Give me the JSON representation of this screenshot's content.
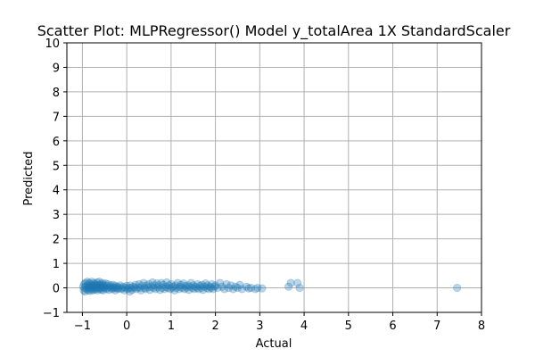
{
  "chart_data": {
    "type": "scatter",
    "title": "Scatter Plot: MLPRegressor() Model y_totalArea 1X StandardScaler",
    "xlabel": "Actual",
    "ylabel": "Predicted",
    "xlim": [
      -1.35,
      8.0
    ],
    "ylim": [
      -1,
      10
    ],
    "xticks": [
      -1,
      0,
      1,
      2,
      3,
      4,
      5,
      6,
      7,
      8
    ],
    "xtick_labels": [
      "−1",
      "0",
      "1",
      "2",
      "3",
      "4",
      "5",
      "6",
      "7",
      "8"
    ],
    "yticks": [
      -1,
      0,
      1,
      2,
      3,
      4,
      5,
      6,
      7,
      8,
      9,
      10
    ],
    "ytick_labels": [
      "−1",
      "0",
      "1",
      "2",
      "3",
      "4",
      "5",
      "6",
      "7",
      "8",
      "9",
      "10"
    ],
    "grid": true,
    "marker_color": "#1f77b4",
    "marker_alpha": 0.3,
    "series": [
      {
        "points": [
          [
            -0.98,
            0.05
          ],
          [
            -0.97,
            -0.1
          ],
          [
            -0.96,
            0.15
          ],
          [
            -0.95,
            0.0
          ],
          [
            -0.94,
            -0.15
          ],
          [
            -0.93,
            0.2
          ],
          [
            -0.92,
            0.05
          ],
          [
            -0.9,
            -0.05
          ],
          [
            -0.89,
            0.25
          ],
          [
            -0.88,
            0.1
          ],
          [
            -0.87,
            -0.1
          ],
          [
            -0.86,
            0.0
          ],
          [
            -0.85,
            0.2
          ],
          [
            -0.84,
            0.05
          ],
          [
            -0.83,
            -0.12
          ],
          [
            -0.82,
            0.15
          ],
          [
            -0.81,
            0.02
          ],
          [
            -0.8,
            -0.05
          ],
          [
            -0.79,
            0.25
          ],
          [
            -0.78,
            0.08
          ],
          [
            -0.77,
            -0.1
          ],
          [
            -0.76,
            0.12
          ],
          [
            -0.75,
            0.0
          ],
          [
            -0.74,
            0.2
          ],
          [
            -0.73,
            -0.08
          ],
          [
            -0.72,
            0.05
          ],
          [
            -0.71,
            0.15
          ],
          [
            -0.7,
            -0.05
          ],
          [
            -0.69,
            0.1
          ],
          [
            -0.68,
            0.0
          ],
          [
            -0.67,
            0.22
          ],
          [
            -0.66,
            -0.1
          ],
          [
            -0.65,
            0.05
          ],
          [
            -0.64,
            0.12
          ],
          [
            -0.63,
            0.0
          ],
          [
            -0.62,
            0.25
          ],
          [
            -0.61,
            -0.05
          ],
          [
            -0.6,
            0.08
          ],
          [
            -0.59,
            0.15
          ],
          [
            -0.58,
            0.0
          ],
          [
            -0.57,
            -0.08
          ],
          [
            -0.56,
            0.1
          ],
          [
            -0.55,
            0.2
          ],
          [
            -0.54,
            0.02
          ],
          [
            -0.53,
            -0.1
          ],
          [
            -0.52,
            0.12
          ],
          [
            -0.51,
            0.05
          ],
          [
            -0.5,
            0.0
          ],
          [
            -0.48,
            0.18
          ],
          [
            -0.46,
            -0.05
          ],
          [
            -0.45,
            0.08
          ],
          [
            -0.43,
            0.0
          ],
          [
            -0.42,
            0.15
          ],
          [
            -0.4,
            -0.08
          ],
          [
            -0.38,
            0.05
          ],
          [
            -0.36,
            0.1
          ],
          [
            -0.35,
            0.0
          ],
          [
            -0.33,
            -0.05
          ],
          [
            -0.31,
            0.12
          ],
          [
            -0.3,
            0.02
          ],
          [
            -0.28,
            0.0
          ],
          [
            -0.26,
            -0.1
          ],
          [
            -0.25,
            0.08
          ],
          [
            -0.23,
            0.0
          ],
          [
            -0.21,
            0.05
          ],
          [
            -0.2,
            -0.05
          ],
          [
            -0.18,
            0.0
          ],
          [
            -0.15,
            0.1
          ],
          [
            -0.12,
            -0.05
          ],
          [
            -0.1,
            0.0
          ],
          [
            -0.08,
            0.05
          ],
          [
            -0.05,
            -0.1
          ],
          [
            -0.03,
            0.0
          ],
          [
            0.0,
            0.08
          ],
          [
            0.02,
            -0.05
          ],
          [
            0.05,
            0.0
          ],
          [
            0.07,
            -0.15
          ],
          [
            0.08,
            0.1
          ],
          [
            0.1,
            0.0
          ],
          [
            0.12,
            -0.08
          ],
          [
            0.15,
            0.05
          ],
          [
            0.18,
            0.0
          ],
          [
            0.2,
            0.12
          ],
          [
            0.22,
            -0.05
          ],
          [
            0.25,
            0.02
          ],
          [
            0.28,
            0.15
          ],
          [
            0.3,
            0.0
          ],
          [
            0.32,
            -0.1
          ],
          [
            0.35,
            0.08
          ],
          [
            0.38,
            0.2
          ],
          [
            0.4,
            0.0
          ],
          [
            0.42,
            -0.05
          ],
          [
            0.45,
            0.1
          ],
          [
            0.48,
            0.02
          ],
          [
            0.5,
            0.15
          ],
          [
            0.52,
            -0.08
          ],
          [
            0.55,
            0.05
          ],
          [
            0.58,
            0.22
          ],
          [
            0.6,
            0.0
          ],
          [
            0.62,
            0.1
          ],
          [
            0.65,
            -0.05
          ],
          [
            0.68,
            0.18
          ],
          [
            0.7,
            0.02
          ],
          [
            0.72,
            0.1
          ],
          [
            0.75,
            -0.08
          ],
          [
            0.78,
            0.2
          ],
          [
            0.8,
            0.0
          ],
          [
            0.82,
            0.12
          ],
          [
            0.85,
            -0.05
          ],
          [
            0.88,
            0.05
          ],
          [
            0.9,
            0.22
          ],
          [
            0.92,
            0.0
          ],
          [
            0.95,
            0.1
          ],
          [
            0.98,
            -0.05
          ],
          [
            1.0,
            0.15
          ],
          [
            1.02,
            0.0
          ],
          [
            1.05,
            0.05
          ],
          [
            1.08,
            -0.1
          ],
          [
            1.1,
            0.1
          ],
          [
            1.12,
            0.0
          ],
          [
            1.15,
            0.2
          ],
          [
            1.18,
            -0.05
          ],
          [
            1.2,
            0.05
          ],
          [
            1.22,
            0.12
          ],
          [
            1.25,
            0.0
          ],
          [
            1.28,
            0.18
          ],
          [
            1.3,
            -0.05
          ],
          [
            1.32,
            0.08
          ],
          [
            1.35,
            0.0
          ],
          [
            1.38,
            0.1
          ],
          [
            1.4,
            -0.08
          ],
          [
            1.42,
            0.05
          ],
          [
            1.45,
            0.2
          ],
          [
            1.48,
            0.0
          ],
          [
            1.5,
            0.1
          ],
          [
            1.52,
            -0.05
          ],
          [
            1.55,
            0.05
          ],
          [
            1.58,
            0.0
          ],
          [
            1.6,
            0.15
          ],
          [
            1.62,
            -0.05
          ],
          [
            1.65,
            0.08
          ],
          [
            1.68,
            0.0
          ],
          [
            1.7,
            0.12
          ],
          [
            1.72,
            -0.08
          ],
          [
            1.75,
            0.05
          ],
          [
            1.78,
            0.18
          ],
          [
            1.8,
            0.0
          ],
          [
            1.82,
            0.1
          ],
          [
            1.85,
            -0.05
          ],
          [
            1.88,
            0.05
          ],
          [
            1.9,
            0.0
          ],
          [
            1.92,
            0.15
          ],
          [
            1.95,
            -0.05
          ],
          [
            1.98,
            0.05
          ],
          [
            2.0,
            0.1
          ],
          [
            2.05,
            0.0
          ],
          [
            2.1,
            0.2
          ],
          [
            2.15,
            0.05
          ],
          [
            2.2,
            -0.05
          ],
          [
            2.25,
            0.15
          ],
          [
            2.3,
            0.0
          ],
          [
            2.35,
            0.1
          ],
          [
            2.4,
            -0.05
          ],
          [
            2.45,
            0.05
          ],
          [
            2.5,
            0.0
          ],
          [
            2.55,
            0.12
          ],
          [
            2.6,
            -0.05
          ],
          [
            2.7,
            0.05
          ],
          [
            2.75,
            -0.02
          ],
          [
            2.8,
            0.0
          ],
          [
            2.9,
            -0.05
          ],
          [
            2.95,
            0.0
          ],
          [
            3.05,
            -0.02
          ],
          [
            3.65,
            0.05
          ],
          [
            3.7,
            0.2
          ],
          [
            3.85,
            0.2
          ],
          [
            3.9,
            0.0
          ],
          [
            7.45,
            0.0
          ]
        ]
      }
    ]
  }
}
